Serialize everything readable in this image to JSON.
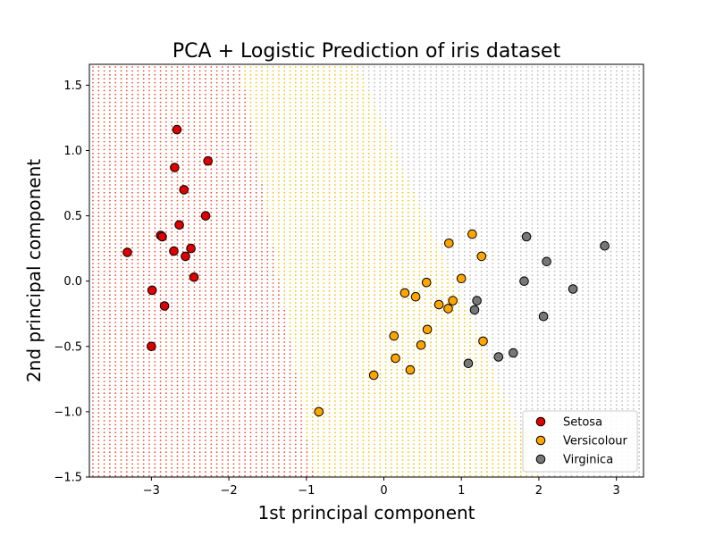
{
  "chart_data": {
    "type": "scatter",
    "title": "PCA + Logistic Prediction of iris dataset",
    "xlabel": "1st principal component",
    "ylabel": "2nd principal component",
    "xlim": [
      -3.8,
      3.35
    ],
    "ylim": [
      -1.5,
      1.66
    ],
    "xticks": [
      -3,
      -2,
      -1,
      0,
      1,
      2,
      3
    ],
    "yticks": [
      -1.5,
      -1.0,
      -0.5,
      0.0,
      0.5,
      1.0,
      1.5
    ],
    "grid": false,
    "legend_position": "bottom-right",
    "background": {
      "type": "decision-regions-dotted",
      "regions": [
        {
          "name": "Setosa",
          "color": "#e8513a"
        },
        {
          "name": "Versicolour",
          "color": "#f2c40f"
        },
        {
          "name": "Virginica",
          "color": "#bdbdbd"
        }
      ]
    },
    "series": [
      {
        "name": "Setosa",
        "color": "#dd0000",
        "points": [
          [
            -2.67,
            1.16
          ],
          [
            -2.27,
            0.92
          ],
          [
            -2.7,
            0.87
          ],
          [
            -2.58,
            0.7
          ],
          [
            -2.3,
            0.5
          ],
          [
            -2.64,
            0.43
          ],
          [
            -2.88,
            0.35
          ],
          [
            -2.86,
            0.34
          ],
          [
            -2.49,
            0.25
          ],
          [
            -3.31,
            0.22
          ],
          [
            -2.71,
            0.23
          ],
          [
            -2.56,
            0.19
          ],
          [
            -2.45,
            0.03
          ],
          [
            -2.99,
            -0.07
          ],
          [
            -2.83,
            -0.19
          ],
          [
            -3.0,
            -0.5
          ]
        ]
      },
      {
        "name": "Versicolour",
        "color": "#ffa500",
        "points": [
          [
            1.14,
            0.36
          ],
          [
            0.84,
            0.29
          ],
          [
            1.26,
            0.19
          ],
          [
            1.0,
            0.02
          ],
          [
            0.55,
            -0.01
          ],
          [
            0.27,
            -0.09
          ],
          [
            0.41,
            -0.12
          ],
          [
            0.89,
            -0.15
          ],
          [
            0.71,
            -0.18
          ],
          [
            0.83,
            -0.21
          ],
          [
            0.56,
            -0.37
          ],
          [
            0.13,
            -0.42
          ],
          [
            1.28,
            -0.46
          ],
          [
            0.48,
            -0.49
          ],
          [
            0.15,
            -0.59
          ],
          [
            0.34,
            -0.68
          ],
          [
            -0.13,
            -0.72
          ],
          [
            -0.84,
            -1.0
          ]
        ]
      },
      {
        "name": "Virginica",
        "color": "#777777",
        "points": [
          [
            1.84,
            0.34
          ],
          [
            2.85,
            0.27
          ],
          [
            2.1,
            0.15
          ],
          [
            1.81,
            0.0
          ],
          [
            2.44,
            -0.06
          ],
          [
            1.2,
            -0.15
          ],
          [
            1.17,
            -0.22
          ],
          [
            2.06,
            -0.27
          ],
          [
            1.67,
            -0.55
          ],
          [
            1.48,
            -0.58
          ],
          [
            1.09,
            -0.63
          ]
        ]
      }
    ]
  }
}
